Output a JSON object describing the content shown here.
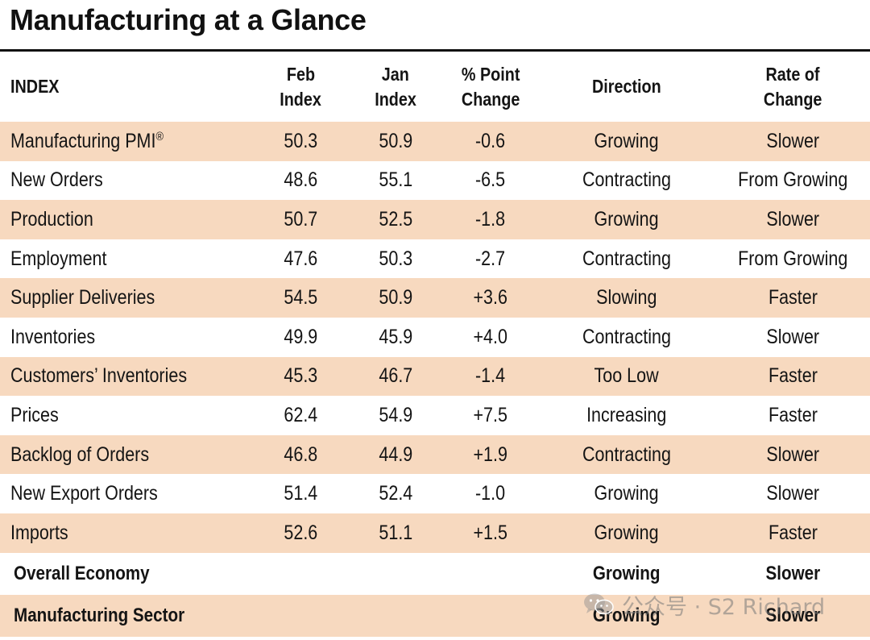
{
  "title": "Manufacturing at a Glance",
  "headers": {
    "index": "INDEX",
    "feb_line1": "Feb",
    "feb_line2": "Index",
    "jan_line1": "Jan",
    "jan_line2": "Index",
    "change_line1": "% Point",
    "change_line2": "Change",
    "direction": "Direction",
    "rate_line1": "Rate of",
    "rate_line2": "Change"
  },
  "rows": [
    {
      "name": "Manufacturing PMI",
      "mark": "®",
      "feb": "50.3",
      "jan": "50.9",
      "change": "-0.6",
      "direction": "Growing",
      "rate": "Slower"
    },
    {
      "name": "New Orders",
      "feb": "48.6",
      "jan": "55.1",
      "change": "-6.5",
      "direction": "Contracting",
      "rate": "From Growing"
    },
    {
      "name": "Production",
      "feb": "50.7",
      "jan": "52.5",
      "change": "-1.8",
      "direction": "Growing",
      "rate": "Slower"
    },
    {
      "name": "Employment",
      "feb": "47.6",
      "jan": "50.3",
      "change": "-2.7",
      "direction": "Contracting",
      "rate": "From Growing"
    },
    {
      "name": "Supplier Deliveries",
      "feb": "54.5",
      "jan": "50.9",
      "change": "+3.6",
      "direction": "Slowing",
      "rate": "Faster"
    },
    {
      "name": "Inventories",
      "feb": "49.9",
      "jan": "45.9",
      "change": "+4.0",
      "direction": "Contracting",
      "rate": "Slower"
    },
    {
      "name": "Customers’ Inventories",
      "feb": "45.3",
      "jan": "46.7",
      "change": "-1.4",
      "direction": "Too Low",
      "rate": "Faster"
    },
    {
      "name": "Prices",
      "feb": "62.4",
      "jan": "54.9",
      "change": "+7.5",
      "direction": "Increasing",
      "rate": "Faster"
    },
    {
      "name": "Backlog of Orders",
      "feb": "46.8",
      "jan": "44.9",
      "change": "+1.9",
      "direction": "Contracting",
      "rate": "Slower"
    },
    {
      "name": "New Export Orders",
      "feb": "51.4",
      "jan": "52.4",
      "change": "-1.0",
      "direction": "Growing",
      "rate": "Slower"
    },
    {
      "name": "Imports",
      "feb": "52.6",
      "jan": "51.1",
      "change": "+1.5",
      "direction": "Growing",
      "rate": "Faster"
    }
  ],
  "summary": [
    {
      "name": "Overall Economy",
      "direction": "Growing",
      "rate": "Slower"
    },
    {
      "name": "Manufacturing Sector",
      "direction": "Growing",
      "rate": "Slower"
    }
  ],
  "watermark": {
    "text": "公众号 · S2 Richard",
    "icon": "wechat-icon"
  },
  "colors": {
    "row_shade": "#f7d9bf",
    "text": "#141414",
    "rule": "#111111"
  }
}
